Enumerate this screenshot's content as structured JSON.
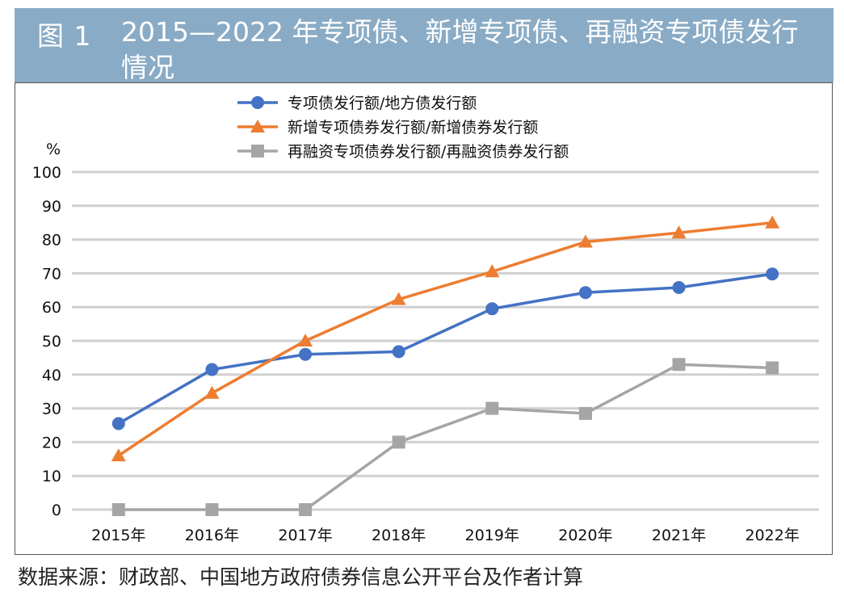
{
  "figure": {
    "label": "图 1",
    "title": "2015—2022 年专项债、新增专项债、再融资专项债发行情况"
  },
  "source": "数据来源：财政部、中国地方政府债券信息公开平台及作者计算",
  "chart_data": {
    "type": "line",
    "title": "2015—2022 年专项债、新增专项债、再融资专项债发行情况",
    "ylabel": "%",
    "xlabel": "",
    "ylim": [
      0,
      100
    ],
    "yticks": [
      0,
      10,
      20,
      30,
      40,
      50,
      60,
      70,
      80,
      90,
      100
    ],
    "grid": true,
    "legend_position": "top-center",
    "categories": [
      "2015年",
      "2016年",
      "2017年",
      "2018年",
      "2019年",
      "2020年",
      "2021年",
      "2022年"
    ],
    "series": [
      {
        "name": "专项债发行额/地方债发行额",
        "marker": "circle",
        "color": "#4472c4",
        "values": [
          25.5,
          41.5,
          46,
          46.8,
          59.5,
          64.3,
          65.8,
          69.8
        ]
      },
      {
        "name": "新增专项债券发行额/新增债券发行额",
        "marker": "triangle",
        "color": "#ed7d31",
        "values": [
          16,
          34.5,
          50,
          62.3,
          70.5,
          79.3,
          82,
          85
        ]
      },
      {
        "name": "再融资专项债券发行额/再融资债券发行额",
        "marker": "square",
        "color": "#a5a5a5",
        "values": [
          0,
          0,
          0,
          20,
          30,
          28.5,
          43,
          42
        ]
      }
    ]
  }
}
